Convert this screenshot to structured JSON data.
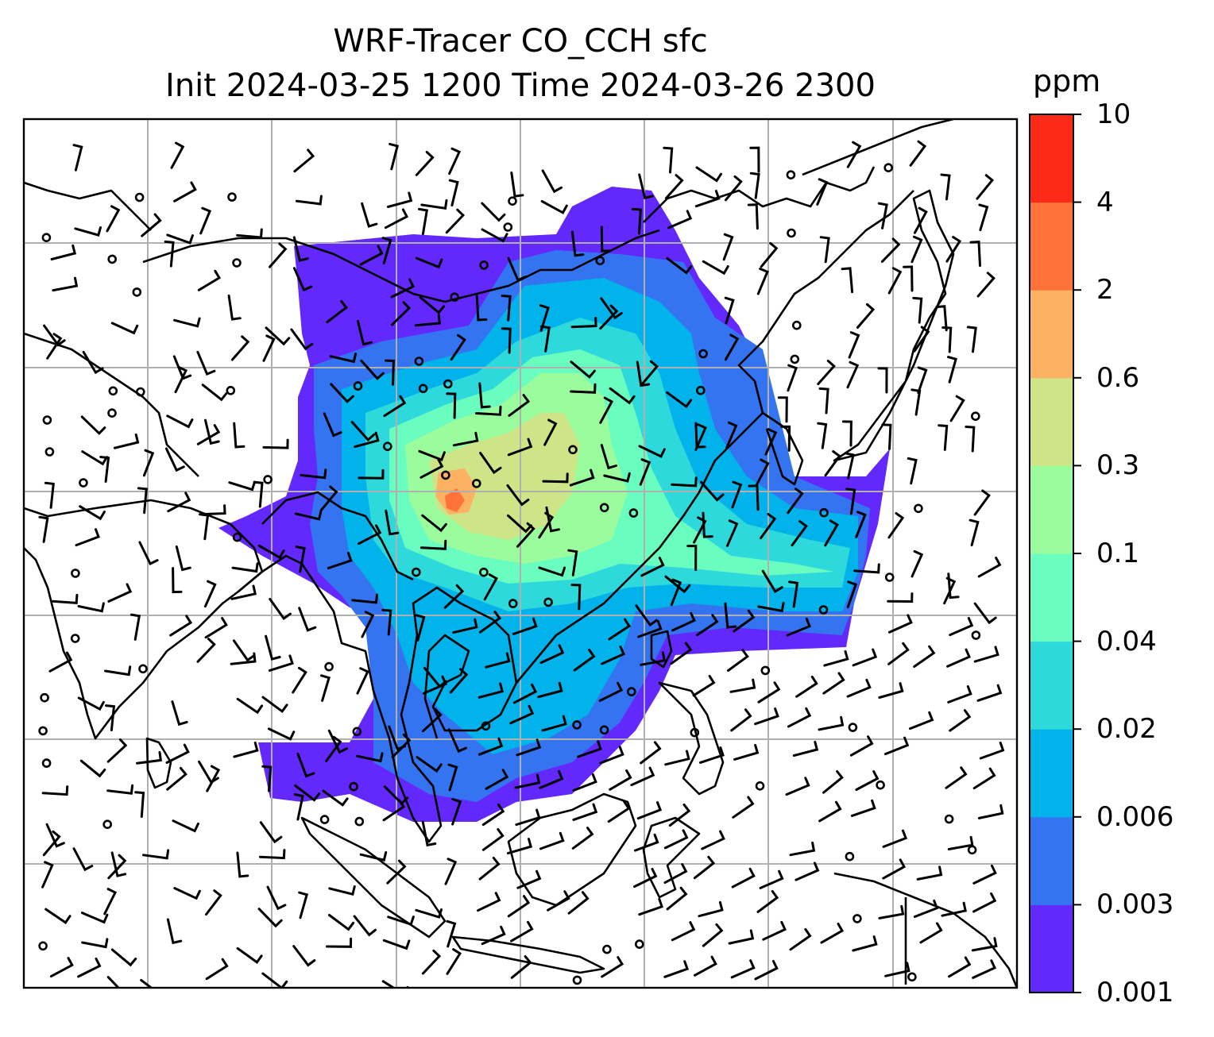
{
  "title": {
    "line1": "WRF-Tracer CO_CCH sfc",
    "line2": "Init 2024-03-25 1200 Time 2024-03-26 2300"
  },
  "colorbar": {
    "unit": "ppm",
    "ticks": [
      "0.001",
      "0.003",
      "0.006",
      "0.02",
      "0.04",
      "0.1",
      "0.3",
      "0.6",
      "2",
      "4",
      "10"
    ],
    "colors": [
      "#6328fb",
      "#3474f1",
      "#02b2ea",
      "#2ed9dc",
      "#6afdc0",
      "#9bfc9e",
      "#cde487",
      "#fdb162",
      "#fd733a",
      "#fd2a18"
    ]
  },
  "map": {
    "gridlines": true,
    "coastline_color": "#000000",
    "wind_barbs": true
  }
}
